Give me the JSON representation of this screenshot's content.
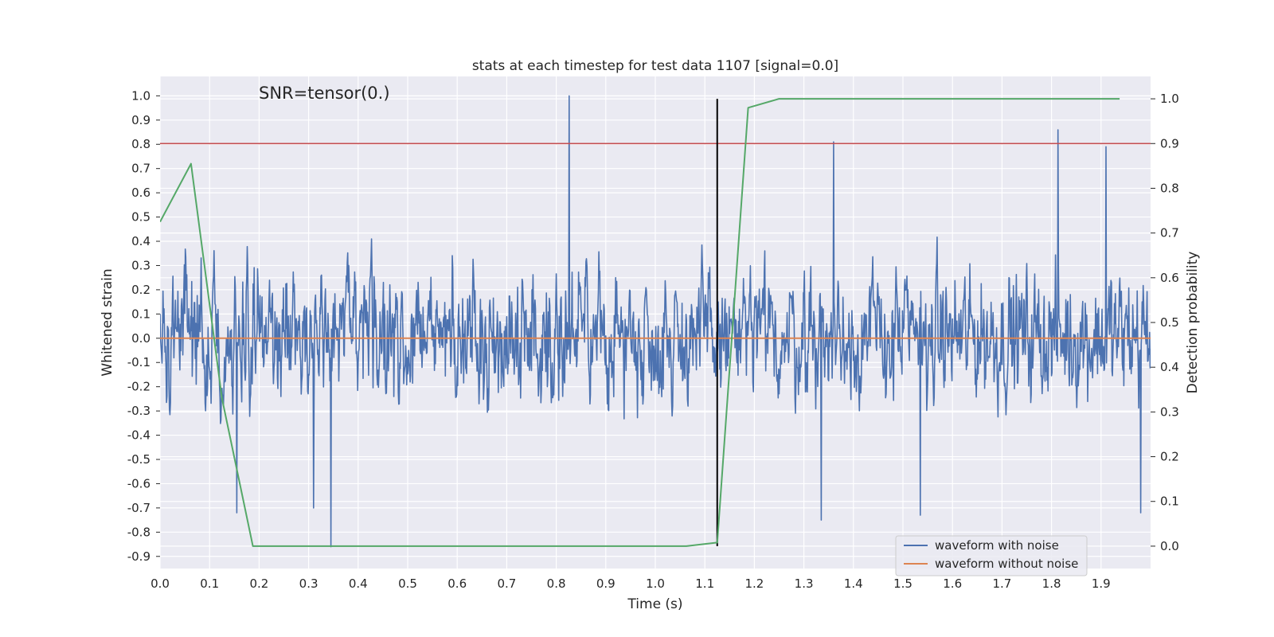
{
  "chart_data": {
    "type": "line",
    "title": "stats at each timestep for test data 1107 [signal=0.0]",
    "annotation": "SNR=tensor(0.)",
    "xlabel": "Time (s)",
    "ylabel_left": "Whitened strain",
    "ylabel_right": "Detection probability",
    "xlim": [
      0.0,
      2.0
    ],
    "ylim_left": [
      -0.95,
      1.08
    ],
    "ylim_right": [
      -0.05,
      1.05
    ],
    "x_ticks": [
      "0.0",
      "0.1",
      "0.2",
      "0.3",
      "0.4",
      "0.5",
      "0.6",
      "0.7",
      "0.8",
      "0.9",
      "1.0",
      "1.1",
      "1.2",
      "1.3",
      "1.4",
      "1.5",
      "1.6",
      "1.7",
      "1.8",
      "1.9"
    ],
    "y_left_ticks": [
      "1.0",
      "0.9",
      "0.8",
      "0.7",
      "0.6",
      "0.5",
      "0.4",
      "0.3",
      "0.2",
      "0.1",
      "0.0",
      "-0.1",
      "-0.2",
      "-0.3",
      "-0.4",
      "-0.5",
      "-0.6",
      "-0.7",
      "-0.8",
      "-0.9"
    ],
    "y_right_ticks": [
      "1.0",
      "0.9",
      "0.8",
      "0.7",
      "0.6",
      "0.5",
      "0.4",
      "0.3",
      "0.2",
      "0.1",
      "0.0"
    ],
    "grid": true,
    "legend_position": "bottom-right",
    "colors": {
      "noise": "#4c72b0",
      "clean": "#dd8452",
      "probability": "#55a868",
      "threshold": "#c44e52",
      "marker": "#000000",
      "background": "#eaeaf2"
    },
    "series": [
      {
        "name": "waveform with noise",
        "axis": "left",
        "sample_rate": 1000,
        "x_start": 0.0,
        "x_end": 2.0,
        "amplitude_band": [
          -0.55,
          0.6
        ],
        "peaks": [
          {
            "x": 0.826,
            "y": 1.0
          },
          {
            "x": 1.813,
            "y": 0.86
          },
          {
            "x": 1.36,
            "y": 0.81
          },
          {
            "x": 1.91,
            "y": 0.79
          },
          {
            "x": 0.345,
            "y": -0.86
          },
          {
            "x": 1.335,
            "y": -0.75
          },
          {
            "x": 1.535,
            "y": -0.73
          },
          {
            "x": 1.98,
            "y": -0.72
          },
          {
            "x": 0.155,
            "y": -0.72
          },
          {
            "x": 0.31,
            "y": -0.7
          }
        ]
      },
      {
        "name": "waveform without noise",
        "axis": "left",
        "x": [
          0.0,
          2.0
        ],
        "y": [
          0.0,
          0.0
        ]
      },
      {
        "name": "",
        "axis": "right",
        "x": [
          0.0,
          0.0625,
          0.125,
          0.1875,
          0.25,
          0.3125,
          0.375,
          0.4375,
          0.5,
          0.5625,
          0.625,
          0.6875,
          0.75,
          0.8125,
          0.875,
          0.9375,
          1.0,
          1.0625,
          1.125,
          1.1875,
          1.25,
          1.3125,
          1.375,
          1.4375,
          1.5,
          1.5625,
          1.625,
          1.6875,
          1.75,
          1.8125,
          1.875,
          1.9375
        ],
        "y": [
          0.725,
          0.855,
          0.33,
          0.0,
          0.0,
          0.0,
          0.0,
          0.0,
          0.0,
          0.0,
          0.0,
          0.0,
          0.0,
          0.0,
          0.0,
          0.0,
          0.0,
          0.0,
          0.008,
          0.98,
          1.0,
          1.0,
          1.0,
          1.0,
          1.0,
          1.0,
          1.0,
          1.0,
          1.0,
          1.0,
          1.0,
          1.0
        ]
      }
    ],
    "threshold": {
      "axis": "right",
      "y": 0.9
    },
    "vline": {
      "x": 1.125,
      "y_from": 0.0,
      "y_to": 1.0
    }
  }
}
